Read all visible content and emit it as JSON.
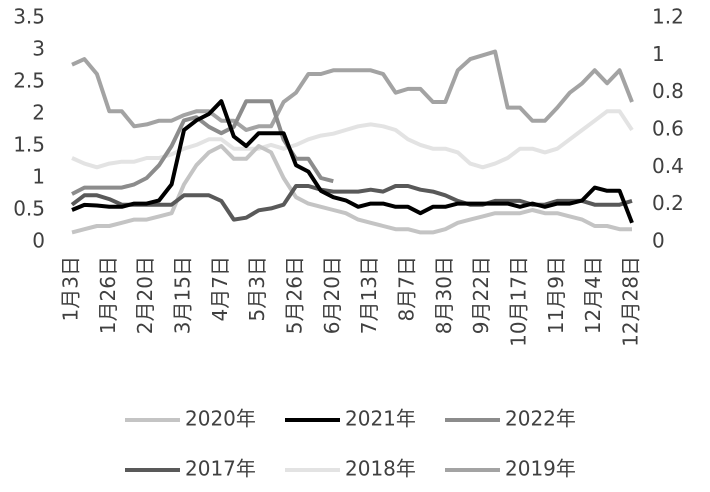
{
  "chart_data": {
    "type": "line",
    "categories": [
      "1月3日",
      null,
      null,
      "1月26日",
      null,
      null,
      "2月20日",
      null,
      null,
      "3月15日",
      null,
      null,
      "4月7日",
      null,
      null,
      "5月3日",
      null,
      null,
      "5月26日",
      null,
      null,
      "6月20日",
      null,
      null,
      "7月13日",
      null,
      null,
      "8月7日",
      null,
      null,
      "8月30日",
      null,
      null,
      "9月22日",
      null,
      null,
      "10月17日",
      null,
      null,
      "11月9日",
      null,
      null,
      "12月4日",
      null,
      null,
      "12月28日"
    ],
    "ylim": [
      0,
      3.5
    ],
    "yticks": [
      0,
      0.5,
      1,
      1.5,
      2,
      2.5,
      3,
      3.5
    ],
    "y2lim": [
      0,
      1.2
    ],
    "y2ticks": [
      0,
      0.2,
      0.4,
      0.6,
      0.8,
      1,
      1.2
    ],
    "grid": false,
    "legend": "bottom",
    "series": [
      {
        "name": "2020年",
        "color": "#c4c4c4",
        "values": [
          0.15,
          0.2,
          0.25,
          0.25,
          0.3,
          0.35,
          0.35,
          0.4,
          0.45,
          0.9,
          1.2,
          1.4,
          1.5,
          1.3,
          1.3,
          1.5,
          1.4,
          1.0,
          0.7,
          0.6,
          0.55,
          0.5,
          0.45,
          0.35,
          0.3,
          0.25,
          0.2,
          0.2,
          0.15,
          0.15,
          0.2,
          0.3,
          0.35,
          0.4,
          0.45,
          0.45,
          0.45,
          0.5,
          0.45,
          0.45,
          0.4,
          0.35,
          0.25,
          0.25,
          0.2,
          0.2
        ]
      },
      {
        "name": "2021年",
        "color": "#000000",
        "values": [
          0.5,
          0.58,
          0.57,
          0.55,
          0.55,
          0.6,
          0.6,
          0.65,
          0.9,
          1.75,
          1.9,
          2.0,
          2.2,
          1.65,
          1.5,
          1.7,
          1.7,
          1.7,
          1.2,
          1.1,
          0.8,
          0.7,
          0.65,
          0.55,
          0.6,
          0.6,
          0.55,
          0.55,
          0.45,
          0.55,
          0.55,
          0.6,
          0.6,
          0.6,
          0.6,
          0.6,
          0.55,
          0.6,
          0.55,
          0.6,
          0.6,
          0.65,
          0.85,
          0.8,
          0.8,
          0.3
        ]
      },
      {
        "name": "2022年",
        "color": "#8c8c8c",
        "values": [
          0.75,
          0.85,
          0.85,
          0.85,
          0.85,
          0.9,
          1.0,
          1.2,
          1.5,
          1.9,
          1.95,
          1.8,
          1.7,
          1.8,
          2.2,
          2.2,
          2.2,
          1.6,
          1.3,
          1.3,
          1.0,
          0.95,
          null,
          null,
          null,
          null,
          null,
          null,
          null,
          null,
          null,
          null,
          null,
          null,
          null,
          null,
          null,
          null,
          null,
          null,
          null,
          null,
          null,
          null,
          null,
          null
        ]
      },
      {
        "name": "2017年",
        "color": "#595959",
        "axis": "y2",
        "values": [
          0.2,
          0.25,
          0.25,
          0.23,
          0.2,
          0.2,
          0.2,
          0.2,
          0.2,
          0.25,
          0.25,
          0.25,
          0.22,
          0.12,
          0.13,
          0.17,
          0.18,
          0.2,
          0.3,
          0.3,
          0.28,
          0.27,
          0.27,
          0.27,
          0.28,
          0.27,
          0.3,
          0.3,
          0.28,
          0.27,
          0.25,
          0.22,
          0.2,
          0.2,
          0.22,
          0.22,
          0.22,
          0.2,
          0.2,
          0.22,
          0.22,
          0.22,
          0.2,
          0.2,
          0.2,
          0.22
        ]
      },
      {
        "name": "2018年",
        "color": "#e3e3e3",
        "axis": "y2",
        "values": [
          0.45,
          0.42,
          0.4,
          0.42,
          0.43,
          0.43,
          0.45,
          0.45,
          0.47,
          0.5,
          0.52,
          0.55,
          0.55,
          0.5,
          0.5,
          0.5,
          0.52,
          0.5,
          0.52,
          0.55,
          0.57,
          0.58,
          0.6,
          0.62,
          0.63,
          0.62,
          0.6,
          0.55,
          0.52,
          0.5,
          0.5,
          0.48,
          0.42,
          0.4,
          0.42,
          0.45,
          0.5,
          0.5,
          0.48,
          0.5,
          0.55,
          0.6,
          0.65,
          0.7,
          0.7,
          0.6
        ]
      },
      {
        "name": "2019年",
        "color": "#a3a3a3",
        "axis": "y2",
        "values": [
          0.95,
          0.98,
          0.9,
          0.7,
          0.7,
          0.62,
          0.63,
          0.65,
          0.65,
          0.68,
          0.7,
          0.7,
          0.65,
          0.65,
          0.6,
          0.62,
          0.62,
          0.75,
          0.8,
          0.9,
          0.9,
          0.92,
          0.92,
          0.92,
          0.92,
          0.9,
          0.8,
          0.82,
          0.82,
          0.75,
          0.75,
          0.92,
          0.98,
          1.0,
          1.02,
          0.72,
          0.72,
          0.65,
          0.65,
          0.72,
          0.8,
          0.85,
          0.92,
          0.85,
          0.92,
          0.75
        ]
      }
    ]
  }
}
